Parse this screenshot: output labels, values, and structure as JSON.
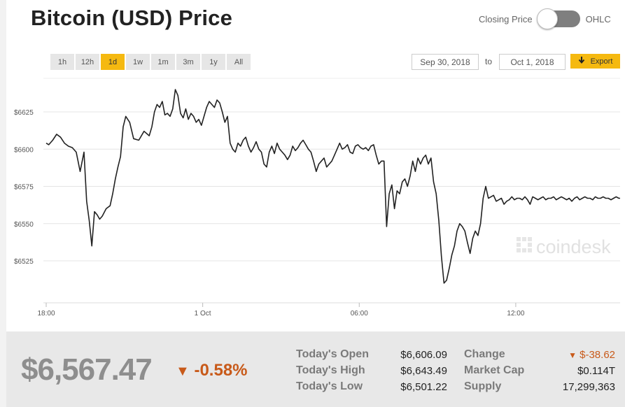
{
  "header": {
    "title": "Bitcoin (USD) Price"
  },
  "toggle": {
    "left_label": "Closing Price",
    "right_label": "OHLC"
  },
  "ranges": [
    {
      "label": "1h",
      "active": false
    },
    {
      "label": "12h",
      "active": false
    },
    {
      "label": "1d",
      "active": true
    },
    {
      "label": "1w",
      "active": false
    },
    {
      "label": "1m",
      "active": false
    },
    {
      "label": "3m",
      "active": false
    },
    {
      "label": "1y",
      "active": false
    },
    {
      "label": "All",
      "active": false
    }
  ],
  "dates": {
    "from": "Sep 30, 2018",
    "to_label": "to",
    "to": "Oct 1, 2018"
  },
  "export": {
    "label": "Export",
    "icon": "arrow-down-icon"
  },
  "watermark": "coindesk",
  "colors": {
    "accent": "#f5b910",
    "negative": "#c85a1a",
    "line": "#222222"
  },
  "chart_data": {
    "type": "line",
    "title": "",
    "xlabel": "",
    "ylabel": "",
    "y_ticks": [
      "$6525",
      "$6550",
      "$6575",
      "$6600",
      "$6625"
    ],
    "y_tick_values": [
      6525,
      6550,
      6575,
      6600,
      6625
    ],
    "ylim": [
      6500,
      6650
    ],
    "x_ticks": [
      {
        "label": "18:00",
        "x": 18
      },
      {
        "label": "1 Oct",
        "x": 24
      },
      {
        "label": "06:00",
        "x": 30
      },
      {
        "label": "12:00",
        "x": 36
      }
    ],
    "xlim": [
      18,
      40
    ],
    "grid": true,
    "series": [
      {
        "x": [
          18.0,
          18.1,
          18.25,
          18.4,
          18.55,
          18.7,
          18.85,
          19.0,
          19.15,
          19.3,
          19.45,
          19.55,
          19.65,
          19.75,
          19.85,
          19.95,
          20.05,
          20.15,
          20.3,
          20.45,
          20.55,
          20.65,
          20.75,
          20.85,
          20.95,
          21.05,
          21.2,
          21.35,
          21.55,
          21.75,
          21.95,
          22.05,
          22.15,
          22.25,
          22.35,
          22.45,
          22.55,
          22.65,
          22.75,
          22.85,
          22.95,
          23.05,
          23.15,
          23.25,
          23.35,
          23.45,
          23.55,
          23.65,
          23.75,
          23.85,
          23.95,
          24.05,
          24.15,
          24.25,
          24.35,
          24.45,
          24.55,
          24.65,
          24.75,
          24.85,
          24.95,
          25.05,
          25.15,
          25.25,
          25.35,
          25.45,
          25.55,
          25.65,
          25.75,
          25.85,
          25.95,
          26.05,
          26.15,
          26.25,
          26.35,
          26.45,
          26.55,
          26.65,
          26.75,
          26.85,
          26.95,
          27.05,
          27.15,
          27.25,
          27.35,
          27.45,
          27.55,
          27.65,
          27.75,
          27.85,
          27.95,
          28.05,
          28.15,
          28.25,
          28.35,
          28.45,
          28.55,
          28.65,
          28.75,
          28.85,
          28.95,
          29.05,
          29.15,
          29.25,
          29.35,
          29.45,
          29.55,
          29.65,
          29.75,
          29.85,
          29.95,
          30.05,
          30.15,
          30.25,
          30.35,
          30.45,
          30.55,
          30.65,
          30.75,
          30.85,
          30.95,
          31.05,
          31.15,
          31.25,
          31.35,
          31.45,
          31.55,
          31.65,
          31.75,
          31.85,
          31.95,
          32.05,
          32.15,
          32.25,
          32.35,
          32.45,
          32.55,
          32.65,
          32.75,
          32.85,
          32.95,
          33.05,
          33.15,
          33.25,
          33.35,
          33.45,
          33.55,
          33.65,
          33.75,
          33.85,
          33.95,
          34.05,
          34.15,
          34.25,
          34.35,
          34.45,
          34.55,
          34.65,
          34.75,
          34.85,
          34.95,
          35.05,
          35.15,
          35.25,
          35.35,
          35.45,
          35.55,
          35.65,
          35.75,
          35.85,
          35.95,
          36.05,
          36.15,
          36.25,
          36.35,
          36.45,
          36.55,
          36.65,
          36.75,
          36.85,
          36.95,
          37.05,
          37.15,
          37.25,
          37.35,
          37.45,
          37.55,
          37.65,
          37.75,
          37.85,
          37.95,
          38.05,
          38.15,
          38.25,
          38.35,
          38.45,
          38.55,
          38.65,
          38.75,
          38.85,
          38.95,
          39.05,
          39.15,
          39.25,
          39.35,
          39.45,
          39.55,
          39.65,
          39.75,
          39.85,
          39.95,
          40.0
        ],
        "y": [
          6604,
          6603,
          6606,
          6610,
          6608,
          6604,
          6602,
          6601,
          6598,
          6585,
          6598,
          6565,
          6552,
          6535,
          6558,
          6556,
          6553,
          6555,
          6560,
          6562,
          6570,
          6580,
          6588,
          6595,
          6615,
          6622,
          6618,
          6607,
          6606,
          6612,
          6609,
          6615,
          6625,
          6630,
          6628,
          6632,
          6623,
          6624,
          6622,
          6627,
          6640,
          6636,
          6624,
          6621,
          6627,
          6620,
          6624,
          6622,
          6618,
          6620,
          6616,
          6622,
          6628,
          6632,
          6630,
          6628,
          6633,
          6631,
          6625,
          6618,
          6622,
          6604,
          6600,
          6598,
          6604,
          6602,
          6606,
          6608,
          6602,
          6598,
          6601,
          6605,
          6600,
          6598,
          6590,
          6588,
          6598,
          6602,
          6597,
          6604,
          6600,
          6598,
          6596,
          6593,
          6596,
          6602,
          6599,
          6601,
          6604,
          6606,
          6603,
          6600,
          6598,
          6592,
          6585,
          6590,
          6592,
          6594,
          6588,
          6590,
          6592,
          6596,
          6600,
          6604,
          6600,
          6601,
          6603,
          6598,
          6597,
          6602,
          6603,
          6601,
          6600,
          6601,
          6599,
          6602,
          6603,
          6596,
          6590,
          6592,
          6592,
          6548,
          6570,
          6576,
          6560,
          6572,
          6570,
          6578,
          6580,
          6575,
          6582,
          6592,
          6585,
          6594,
          6590,
          6594,
          6596,
          6590,
          6594,
          6578,
          6570,
          6552,
          6528,
          6510,
          6512,
          6520,
          6529,
          6535,
          6545,
          6550,
          6548,
          6545,
          6537,
          6530,
          6540,
          6545,
          6542,
          6550,
          6567,
          6575,
          6567,
          6568,
          6569,
          6565,
          6566,
          6567,
          6563,
          6565,
          6566,
          6568,
          6566,
          6567,
          6567,
          6566,
          6568,
          6566,
          6563,
          6568,
          6567,
          6566,
          6567,
          6568,
          6566,
          6567,
          6567,
          6568,
          6566,
          6567,
          6568,
          6567,
          6566,
          6567,
          6565,
          6567,
          6568,
          6566,
          6567,
          6568,
          6567,
          6567,
          6566,
          6568,
          6567,
          6567,
          6568,
          6567,
          6567,
          6566,
          6567,
          6568,
          6567,
          6567
        ]
      }
    ]
  },
  "footer": {
    "price": "$6,567.47",
    "change_pct": "-0.58%",
    "stats": [
      {
        "label": "Today's Open",
        "value": "$6,606.09"
      },
      {
        "label": "Today's High",
        "value": "$6,643.49"
      },
      {
        "label": "Today's Low",
        "value": "$6,501.22"
      },
      {
        "label": "Change",
        "value": "$-38.62",
        "negative": true
      },
      {
        "label": "Market Cap",
        "value": "$0.114T"
      },
      {
        "label": "Supply",
        "value": "17,299,363"
      }
    ]
  }
}
